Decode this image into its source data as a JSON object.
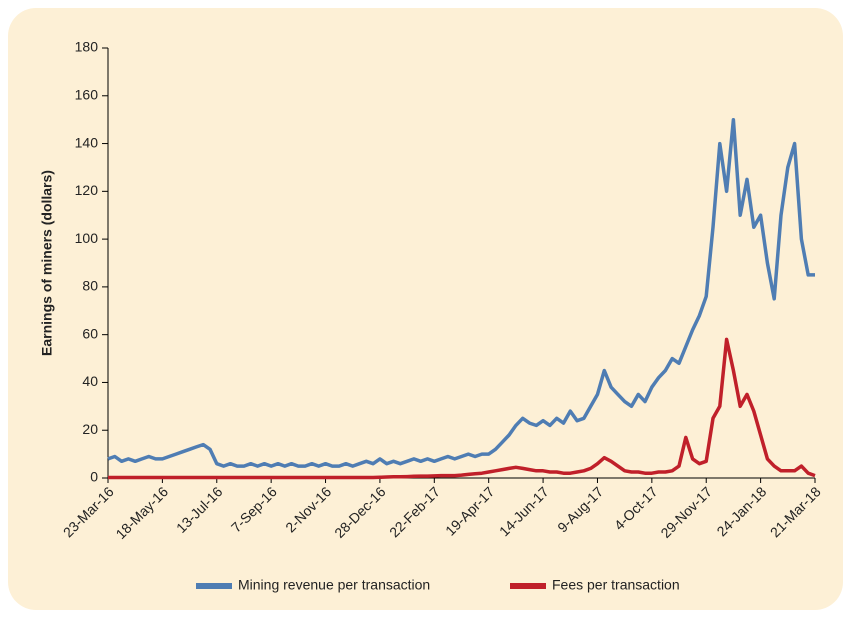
{
  "chart_data": {
    "type": "line",
    "ylabel": "Earnings of miners (dollars)",
    "categories": [
      "23-Mar-16",
      null,
      null,
      null,
      null,
      null,
      null,
      null,
      "18-May-16",
      null,
      null,
      null,
      null,
      null,
      null,
      null,
      "13-Jul-16",
      null,
      null,
      null,
      null,
      null,
      null,
      null,
      "7-Sep-16",
      null,
      null,
      null,
      null,
      null,
      null,
      null,
      "2-Nov-16",
      null,
      null,
      null,
      null,
      null,
      null,
      null,
      "28-Dec-16",
      null,
      null,
      null,
      null,
      null,
      null,
      null,
      "22-Feb-17",
      null,
      null,
      null,
      null,
      null,
      null,
      null,
      "19-Apr-17",
      null,
      null,
      null,
      null,
      null,
      null,
      null,
      "14-Jun-17",
      null,
      null,
      null,
      null,
      null,
      null,
      null,
      "9-Aug-17",
      null,
      null,
      null,
      null,
      null,
      null,
      null,
      "4-Oct-17",
      null,
      null,
      null,
      null,
      null,
      null,
      null,
      "29-Nov-17",
      null,
      null,
      null,
      null,
      null,
      null,
      null,
      "24-Jan-18",
      null,
      null,
      null,
      null,
      null,
      null,
      null,
      "21-Mar-18"
    ],
    "series": [
      {
        "name": "Mining revenue per transaction",
        "color": "#4f7db3",
        "values": [
          8,
          9,
          7,
          8,
          7,
          8,
          9,
          8,
          8,
          9,
          10,
          11,
          12,
          13,
          14,
          12,
          6,
          5,
          6,
          5,
          5,
          6,
          5,
          6,
          5,
          6,
          5,
          6,
          5,
          5,
          6,
          5,
          6,
          5,
          5,
          6,
          5,
          6,
          7,
          6,
          8,
          6,
          7,
          6,
          7,
          8,
          7,
          8,
          7,
          8,
          9,
          8,
          9,
          10,
          9,
          10,
          10,
          12,
          15,
          18,
          22,
          25,
          23,
          22,
          24,
          22,
          25,
          23,
          28,
          24,
          25,
          30,
          35,
          45,
          38,
          35,
          32,
          30,
          35,
          32,
          38,
          42,
          45,
          50,
          48,
          55,
          62,
          68,
          76,
          105,
          140,
          120,
          150,
          110,
          125,
          105,
          110,
          90,
          75,
          110,
          130,
          140,
          100,
          85,
          85
        ]
      },
      {
        "name": "Fees per transaction",
        "color": "#c0202a",
        "values": [
          0.2,
          0.2,
          0.2,
          0.2,
          0.2,
          0.2,
          0.2,
          0.2,
          0.2,
          0.2,
          0.2,
          0.2,
          0.2,
          0.2,
          0.2,
          0.2,
          0.2,
          0.2,
          0.2,
          0.2,
          0.2,
          0.2,
          0.2,
          0.2,
          0.2,
          0.2,
          0.2,
          0.2,
          0.2,
          0.2,
          0.2,
          0.2,
          0.2,
          0.2,
          0.2,
          0.2,
          0.2,
          0.2,
          0.2,
          0.2,
          0.3,
          0.4,
          0.5,
          0.5,
          0.6,
          0.7,
          0.8,
          0.8,
          0.9,
          1,
          1,
          1,
          1.2,
          1.5,
          1.8,
          2,
          2.5,
          3,
          3.5,
          4,
          4.5,
          4,
          3.5,
          3,
          3,
          2.5,
          2.5,
          2,
          2,
          2.5,
          3,
          4,
          6,
          8.5,
          7,
          5,
          3,
          2.5,
          2.5,
          2,
          2,
          2.5,
          2.5,
          3,
          5,
          17,
          8,
          6,
          7,
          25,
          30,
          58,
          45,
          30,
          35,
          28,
          18,
          8,
          5,
          3,
          3,
          3,
          5,
          2,
          1
        ]
      }
    ],
    "ylim": [
      0,
      180
    ],
    "yticks": [
      0,
      20,
      40,
      60,
      80,
      100,
      120,
      140,
      160,
      180
    ],
    "grid": false,
    "legend": "bottom"
  }
}
